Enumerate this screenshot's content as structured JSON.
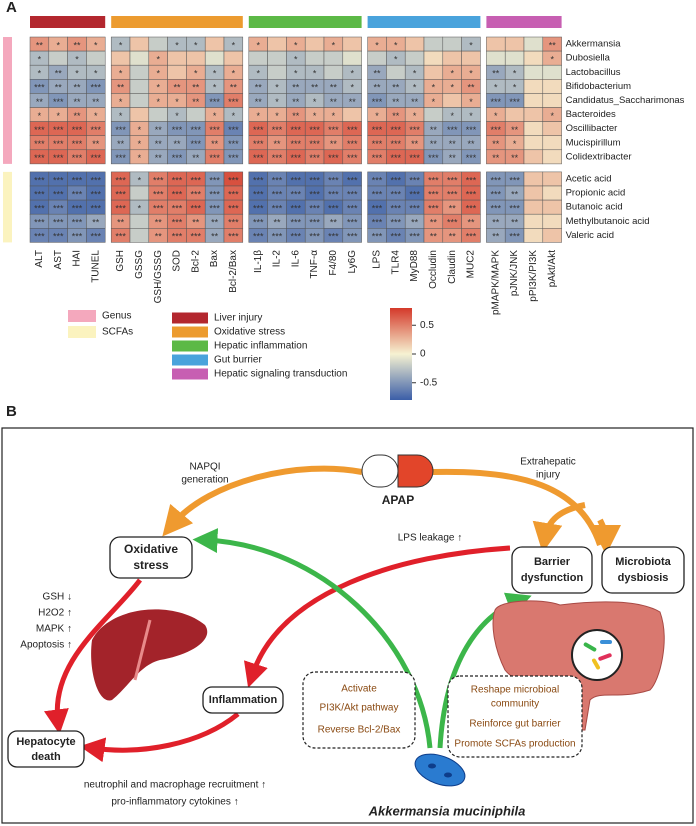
{
  "panel_a": {
    "label": "A",
    "column_groups": [
      {
        "name": "Liver injury",
        "color": "#b3272e",
        "columns": [
          "ALT",
          "AST",
          "HAI",
          "TUNEL"
        ]
      },
      {
        "name": "Oxidative stress",
        "color": "#ec9b2f",
        "columns": [
          "GSH",
          "GSSG",
          "GSH/GSSG",
          "SOD",
          "Bcl-2",
          "Bax",
          "Bcl-2/Bax"
        ]
      },
      {
        "name": "Hepatic inflammation",
        "color": "#5cb946",
        "columns": [
          "IL-1β",
          "IL-2",
          "IL-6",
          "TNF-α",
          "F4/80",
          "Ly6G"
        ]
      },
      {
        "name": "Gut burrier",
        "color": "#49a3dc",
        "columns": [
          "LPS",
          "TLR4",
          "MyD88",
          "Occludin",
          "Claudin",
          "MUC2"
        ]
      },
      {
        "name": "Hepatic signaling transduction",
        "color": "#c75fb2",
        "columns": [
          "pMAPK/MAPK",
          "pJNK/JNK",
          "pPI3K/PI3K",
          "pAkt/Akt"
        ]
      }
    ],
    "row_groups": [
      {
        "name": "Genus",
        "color": "#f4a8bd",
        "rows": [
          "Akkermansia",
          "Dubosiella",
          "Lactobacillus",
          "Bifidobacterium",
          "Candidatus_Saccharimonas",
          "Bacteroides",
          "Oscillibacter",
          "Mucispirillum",
          "Colidextribacter"
        ]
      },
      {
        "name": "SCFAs",
        "color": "#fbf3bf",
        "rows": [
          "Acetic acid",
          "Propionic acid",
          "Butanoic acid",
          "Methylbutanoic acid",
          "Valeric acid"
        ]
      }
    ],
    "values": [
      [
        0.4,
        0.3,
        0.4,
        0.3,
        -0.3,
        0.2,
        -0.2,
        -0.3,
        -0.3,
        0.2,
        -0.3,
        0.3,
        0.2,
        0.3,
        0.2,
        0.3,
        0.2,
        0.3,
        0.3,
        0.2,
        -0.2,
        -0.2,
        -0.3,
        0.2,
        0.2,
        -0.1,
        0.4
      ],
      [
        -0.3,
        -0.2,
        -0.3,
        -0.2,
        0.2,
        -0.1,
        0.3,
        0.2,
        0.2,
        -0.1,
        0.2,
        -0.2,
        -0.2,
        -0.3,
        -0.2,
        -0.2,
        -0.1,
        -0.2,
        -0.3,
        -0.2,
        0.1,
        0.2,
        0.2,
        -0.1,
        -0.1,
        0.1,
        0.3
      ],
      [
        -0.3,
        -0.4,
        -0.3,
        -0.3,
        0.3,
        -0.2,
        0.3,
        0.2,
        0.3,
        -0.3,
        0.3,
        -0.3,
        -0.2,
        -0.3,
        -0.3,
        -0.2,
        -0.3,
        -0.4,
        -0.2,
        -0.3,
        0.2,
        0.3,
        0.3,
        -0.4,
        -0.3,
        -0.1,
        -0.1
      ],
      [
        -0.5,
        -0.4,
        -0.4,
        -0.5,
        0.4,
        -0.2,
        0.3,
        0.4,
        0.4,
        -0.3,
        0.4,
        -0.4,
        -0.3,
        -0.4,
        -0.4,
        -0.4,
        -0.3,
        -0.4,
        -0.4,
        -0.3,
        0.3,
        0.3,
        0.4,
        -0.3,
        -0.3,
        0.1,
        0.1
      ],
      [
        -0.4,
        -0.5,
        -0.4,
        -0.4,
        0.3,
        -0.2,
        0.3,
        0.3,
        0.4,
        -0.5,
        0.5,
        -0.4,
        -0.3,
        -0.4,
        -0.3,
        -0.4,
        -0.4,
        -0.5,
        -0.4,
        -0.4,
        0.3,
        0.2,
        0.3,
        -0.5,
        -0.5,
        0.1,
        0.1
      ],
      [
        0.3,
        0.3,
        0.4,
        0.3,
        -0.3,
        0.2,
        -0.2,
        -0.3,
        -0.2,
        0.3,
        -0.3,
        0.3,
        0.3,
        0.4,
        0.3,
        0.3,
        0.2,
        0.3,
        0.4,
        0.3,
        -0.2,
        -0.3,
        -0.3,
        0.3,
        0.2,
        0.2,
        0.3
      ],
      [
        0.6,
        0.6,
        0.6,
        0.5,
        -0.5,
        0.3,
        -0.4,
        -0.5,
        -0.5,
        0.5,
        -0.6,
        0.6,
        0.5,
        0.6,
        0.6,
        0.5,
        0.6,
        0.6,
        0.6,
        0.5,
        -0.4,
        -0.5,
        -0.5,
        0.5,
        0.4,
        0.1,
        0.2
      ],
      [
        0.5,
        0.5,
        0.5,
        0.4,
        -0.4,
        0.3,
        -0.4,
        -0.4,
        -0.5,
        0.4,
        -0.5,
        0.5,
        0.4,
        0.5,
        0.5,
        0.4,
        0.5,
        0.5,
        0.5,
        0.4,
        -0.4,
        -0.4,
        -0.4,
        0.4,
        0.3,
        0.1,
        0.1
      ],
      [
        0.6,
        0.6,
        0.5,
        0.6,
        -0.5,
        0.3,
        -0.4,
        -0.5,
        -0.4,
        0.5,
        -0.5,
        0.6,
        0.5,
        0.6,
        0.5,
        0.6,
        0.5,
        0.5,
        0.6,
        0.6,
        -0.5,
        -0.4,
        -0.5,
        0.4,
        0.4,
        0.2,
        0.1
      ],
      [
        -0.7,
        -0.7,
        -0.7,
        -0.7,
        0.6,
        -0.3,
        0.5,
        0.6,
        0.6,
        -0.5,
        0.7,
        -0.7,
        -0.6,
        -0.7,
        -0.7,
        -0.6,
        -0.7,
        -0.6,
        -0.7,
        -0.6,
        0.5,
        0.5,
        0.6,
        -0.5,
        -0.5,
        0.2,
        0.2
      ],
      [
        -0.7,
        -0.7,
        -0.6,
        -0.7,
        0.6,
        -0.2,
        0.5,
        0.6,
        0.5,
        -0.5,
        0.6,
        -0.7,
        -0.6,
        -0.6,
        -0.7,
        -0.6,
        -0.6,
        -0.6,
        -0.6,
        -0.7,
        0.5,
        0.5,
        0.6,
        -0.5,
        -0.4,
        0.2,
        0.1
      ],
      [
        -0.7,
        -0.6,
        -0.7,
        -0.7,
        0.6,
        -0.3,
        0.5,
        0.5,
        0.6,
        -0.5,
        0.6,
        -0.7,
        -0.6,
        -0.7,
        -0.6,
        -0.7,
        -0.6,
        -0.7,
        -0.6,
        -0.6,
        0.5,
        0.4,
        0.6,
        -0.5,
        -0.5,
        0.2,
        0.2
      ],
      [
        -0.5,
        -0.5,
        -0.5,
        -0.4,
        0.4,
        -0.2,
        0.4,
        0.5,
        0.4,
        -0.4,
        0.5,
        -0.5,
        -0.4,
        -0.5,
        -0.5,
        -0.4,
        -0.5,
        -0.6,
        -0.5,
        -0.4,
        0.4,
        0.5,
        0.4,
        -0.4,
        -0.4,
        0.1,
        0.1
      ],
      [
        -0.6,
        -0.6,
        -0.5,
        -0.6,
        0.5,
        -0.2,
        0.4,
        0.5,
        0.5,
        -0.4,
        0.5,
        -0.6,
        -0.5,
        -0.6,
        -0.5,
        -0.6,
        -0.5,
        -0.5,
        -0.6,
        -0.5,
        0.4,
        0.4,
        0.5,
        -0.4,
        -0.5,
        0.1,
        0.2
      ]
    ],
    "stars": [
      [
        "**",
        "*",
        "**",
        "*",
        "*",
        null,
        null,
        "*",
        "*",
        null,
        "*",
        "*",
        null,
        "*",
        null,
        "*",
        null,
        "*",
        "*",
        null,
        null,
        null,
        "*",
        null,
        null,
        null,
        "**"
      ],
      [
        "*",
        null,
        "*",
        null,
        null,
        null,
        "*",
        null,
        null,
        null,
        null,
        null,
        null,
        "*",
        null,
        null,
        null,
        null,
        "*",
        null,
        null,
        null,
        null,
        null,
        null,
        null,
        "*"
      ],
      [
        "*",
        "**",
        "*",
        "*",
        "*",
        null,
        "*",
        null,
        "*",
        "*",
        "*",
        "*",
        null,
        "*",
        "*",
        null,
        "*",
        "**",
        null,
        "*",
        null,
        "*",
        "*",
        "**",
        "*",
        null,
        null
      ],
      [
        "***",
        "**",
        "**",
        "***",
        "**",
        null,
        "*",
        "**",
        "**",
        "*",
        "**",
        "**",
        "*",
        "**",
        "**",
        "**",
        "*",
        "**",
        "**",
        "*",
        "*",
        "*",
        "**",
        "*",
        "*",
        null,
        null
      ],
      [
        "**",
        "***",
        "**",
        "**",
        "*",
        null,
        "*",
        "*",
        "**",
        "***",
        "***",
        "**",
        "*",
        "**",
        "*",
        "**",
        "**",
        "***",
        "**",
        "**",
        "*",
        null,
        "*",
        "***",
        "***",
        null,
        null
      ],
      [
        "*",
        "*",
        "**",
        "*",
        "*",
        null,
        null,
        "*",
        null,
        "*",
        "*",
        "*",
        "*",
        "**",
        "*",
        "*",
        null,
        "*",
        "**",
        "*",
        null,
        "*",
        "*",
        "*",
        null,
        null,
        "*"
      ],
      [
        "***",
        "***",
        "***",
        "***",
        "***",
        "*",
        "**",
        "***",
        "***",
        "***",
        "***",
        "***",
        "***",
        "***",
        "***",
        "***",
        "***",
        "***",
        "***",
        "***",
        "**",
        "***",
        "***",
        "***",
        "**",
        null,
        null
      ],
      [
        "***",
        "***",
        "***",
        "**",
        "**",
        "*",
        "**",
        "**",
        "***",
        "**",
        "***",
        "***",
        "**",
        "***",
        "***",
        "**",
        "***",
        "***",
        "***",
        "**",
        "**",
        "**",
        "**",
        "**",
        "*",
        null,
        null
      ],
      [
        "***",
        "***",
        "***",
        "***",
        "***",
        "*",
        "**",
        "***",
        "**",
        "***",
        "***",
        "***",
        "***",
        "***",
        "***",
        "***",
        "***",
        "***",
        "***",
        "***",
        "***",
        "**",
        "***",
        "**",
        "**",
        null,
        null
      ],
      [
        "***",
        "***",
        "***",
        "***",
        "***",
        "*",
        "***",
        "***",
        "***",
        "***",
        "***",
        "***",
        "***",
        "***",
        "***",
        "***",
        "***",
        "***",
        "***",
        "***",
        "***",
        "***",
        "***",
        "***",
        "***",
        null,
        null
      ],
      [
        "***",
        "***",
        "***",
        "***",
        "***",
        null,
        "***",
        "***",
        "***",
        "***",
        "***",
        "***",
        "***",
        "***",
        "***",
        "***",
        "***",
        "***",
        "***",
        "***",
        "***",
        "***",
        "***",
        "***",
        "**",
        null,
        null
      ],
      [
        "***",
        "***",
        "***",
        "***",
        "***",
        "*",
        "***",
        "***",
        "***",
        "***",
        "***",
        "***",
        "***",
        "***",
        "***",
        "***",
        "***",
        "***",
        "***",
        "***",
        "***",
        "**",
        "***",
        "***",
        "***",
        null,
        null
      ],
      [
        "***",
        "***",
        "***",
        "**",
        "**",
        null,
        "**",
        "***",
        "**",
        "**",
        "***",
        "***",
        "**",
        "***",
        "***",
        "**",
        "***",
        "***",
        "***",
        "**",
        "**",
        "***",
        "**",
        "**",
        "**",
        null,
        null
      ],
      [
        "***",
        "***",
        "***",
        "***",
        "***",
        null,
        "**",
        "***",
        "***",
        "**",
        "***",
        "***",
        "***",
        "***",
        "***",
        "***",
        "***",
        "***",
        "***",
        "***",
        "**",
        "**",
        "***",
        "**",
        "***",
        null,
        null
      ]
    ],
    "colorbar": {
      "lim": [
        -0.8,
        0.8
      ],
      "ticks": [
        -0.5,
        0,
        0.5
      ],
      "colors": [
        "#3b5ea8",
        "#f6f2d2",
        "#d4392a"
      ]
    }
  },
  "panel_b": {
    "label": "B",
    "drug": "APAP",
    "napqi": [
      "NAPQI",
      "generation"
    ],
    "extrahepatic": [
      "Extrahepatic",
      "injury"
    ],
    "oxidative_stress": [
      "Oxidative",
      "stress"
    ],
    "barrier": [
      "Barrier",
      "dysfunction"
    ],
    "dysbiosis": [
      "Microbiota",
      "dysbiosis"
    ],
    "inflammation": "Inflammation",
    "death": [
      "Hepatocyte",
      "death"
    ],
    "lps": "LPS leakage ↑",
    "markers": [
      "GSH ↓",
      "H2O2 ↑",
      "MAPK ↑",
      "Apoptosis ↑"
    ],
    "hepatic_actions": [
      "Activate",
      "PI3K/Akt pathway",
      "Reverse Bcl-2/Bax"
    ],
    "gut_actions": [
      "Reshape microbioal",
      "community",
      "Reinforce gut barrier",
      "Promote SCFAs production"
    ],
    "recruitment": [
      "neutrophil and macrophage recruitment ↑",
      "pro-inflammatory cytokines ↑"
    ],
    "bacterium": "Akkermansia muciniphila"
  }
}
